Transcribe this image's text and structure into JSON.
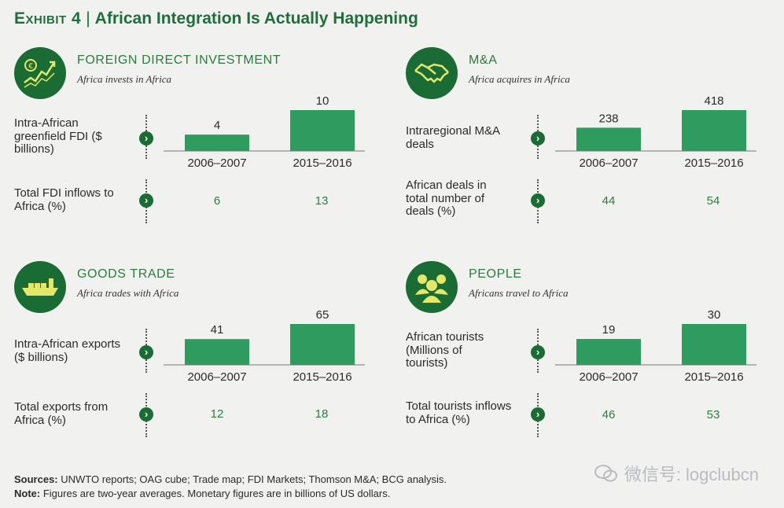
{
  "header": {
    "exhibit": "Exhibit 4",
    "title": "African Integration Is Actually Happening"
  },
  "panels": [
    {
      "title": "FOREIGN DIRECT INVESTMENT",
      "subtitle": "Africa invests in Africa",
      "icon": "euro-growth-icon",
      "row1_label": "Intra-African greenfield FDI ($ billions)",
      "row2_label": "Total FDI inflows to Africa (%)",
      "pct_values": [
        "6",
        "13"
      ]
    },
    {
      "title": "M&A",
      "subtitle": "Africa acquires in Africa",
      "icon": "handshake-icon",
      "row1_label": "Intraregional M&A deals",
      "row2_label": "African deals in total number of deals (%)",
      "pct_values": [
        "44",
        "54"
      ]
    },
    {
      "title": "GOODS TRADE",
      "subtitle": "Africa trades with Africa",
      "icon": "cargo-ship-icon",
      "row1_label": "Intra-African exports ($ billions)",
      "row2_label": "Total exports from Africa (%)",
      "pct_values": [
        "12",
        "18"
      ]
    },
    {
      "title": "PEOPLE",
      "subtitle": "Africans travel to Africa",
      "icon": "people-icon",
      "row1_label": "African tourists (Millions of tourists)",
      "row2_label": "Total tourists inflows to Africa (%)",
      "pct_values": [
        "46",
        "53"
      ]
    }
  ],
  "chart_data": [
    {
      "type": "bar",
      "categories": [
        "2006–2007",
        "2015–2016"
      ],
      "values": [
        4,
        10
      ],
      "ylabel": "Intra-African greenfield FDI ($ billions)"
    },
    {
      "type": "bar",
      "categories": [
        "2006–2007",
        "2015–2016"
      ],
      "values": [
        238,
        418
      ],
      "ylabel": "Intraregional M&A deals"
    },
    {
      "type": "bar",
      "categories": [
        "2006–2007",
        "2015–2016"
      ],
      "values": [
        41,
        65
      ],
      "ylabel": "Intra-African exports ($ billions)"
    },
    {
      "type": "bar",
      "categories": [
        "2006–2007",
        "2015–2016"
      ],
      "values": [
        19,
        30
      ],
      "ylabel": "African tourists (Millions of tourists)"
    }
  ],
  "footer": {
    "sources_label": "Sources:",
    "sources_text": "UNWTO reports; OAG cube; Trade map; FDI Markets; Thomson M&A; BCG analysis.",
    "note_label": "Note:",
    "note_text": "Figures are two-year averages. Monetary figures are in billions of US dollars."
  },
  "watermark": {
    "text": "微信号: logclubcn"
  },
  "colors": {
    "accent": "#1b6b35",
    "bar": "#2e9b5f",
    "heading": "#2c7b3f",
    "background": "#f1f1ef"
  }
}
